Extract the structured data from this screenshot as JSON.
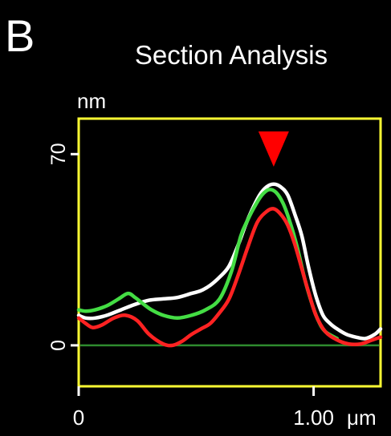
{
  "panel_label": "B",
  "chart_data": {
    "type": "line",
    "title": "Section Analysis",
    "ylabel": "nm",
    "xlabel": "μm",
    "ylim": [
      -15,
      83
    ],
    "xlim": [
      0,
      1.285
    ],
    "y_ticks": [
      {
        "value": 0,
        "label": "0"
      },
      {
        "value": 70,
        "label": "70"
      }
    ],
    "x_ticks": [
      {
        "value": 0,
        "label": "0"
      },
      {
        "value": 1.0,
        "label": "1.00"
      }
    ],
    "baseline": {
      "value": 0,
      "color": "#2e8b2e"
    },
    "marker": {
      "x": 0.83,
      "shape": "down-triangle",
      "color": "#ff0000"
    },
    "frame_color": "#ffff33",
    "series": [
      {
        "color": "#ffffff",
        "x": [
          0,
          0.03,
          0.07,
          0.12,
          0.18,
          0.24,
          0.3,
          0.36,
          0.42,
          0.48,
          0.52,
          0.56,
          0.6,
          0.64,
          0.68,
          0.71,
          0.74,
          0.77,
          0.8,
          0.83,
          0.86,
          0.89,
          0.92,
          0.95,
          0.98,
          1.01,
          1.04,
          1.07,
          1.1,
          1.14,
          1.18,
          1.22,
          1.26,
          1.285
        ],
        "y": [
          11,
          10,
          10,
          11,
          13,
          15,
          16.5,
          17,
          17.5,
          19,
          20,
          22,
          25,
          29,
          37,
          44,
          50,
          55,
          58,
          59,
          58,
          55,
          48,
          40,
          28,
          18,
          11,
          8,
          6,
          4,
          3,
          2.5,
          4,
          6
        ]
      },
      {
        "color": "#44dd44",
        "x": [
          0,
          0.03,
          0.07,
          0.12,
          0.17,
          0.21,
          0.24,
          0.27,
          0.31,
          0.36,
          0.42,
          0.48,
          0.54,
          0.6,
          0.65,
          0.69,
          0.72,
          0.75,
          0.78,
          0.81,
          0.84,
          0.87,
          0.9,
          0.93,
          0.96,
          0.99,
          1.02,
          1.05,
          1.1
        ],
        "y": [
          13,
          12.5,
          13,
          14.5,
          17,
          19,
          17.5,
          15.5,
          13,
          11,
          10,
          11,
          13,
          17,
          27,
          40,
          46,
          51,
          55,
          57,
          56,
          52,
          45,
          36,
          25,
          16,
          9,
          5,
          2.5
        ]
      },
      {
        "color": "#ff2222",
        "x": [
          0,
          0.03,
          0.06,
          0.1,
          0.15,
          0.2,
          0.25,
          0.3,
          0.36,
          0.4,
          0.44,
          0.48,
          0.52,
          0.56,
          0.6,
          0.64,
          0.68,
          0.72,
          0.76,
          0.8,
          0.83,
          0.86,
          0.89,
          0.92,
          0.95,
          0.98,
          1.01,
          1.05,
          1.1,
          1.15,
          1.2,
          1.25,
          1.285
        ],
        "y": [
          10,
          8,
          6.5,
          7.5,
          10,
          11,
          9,
          4,
          0.5,
          0,
          1.5,
          4,
          6,
          8,
          12,
          17,
          26,
          36,
          45,
          49,
          50,
          48,
          44,
          37,
          28,
          19,
          11,
          5,
          2,
          0.5,
          0.5,
          2,
          3
        ]
      }
    ]
  }
}
